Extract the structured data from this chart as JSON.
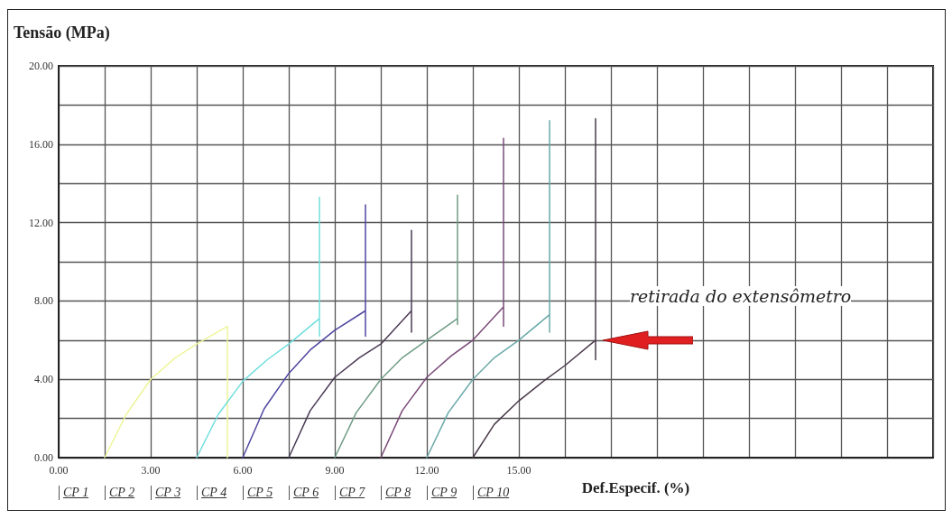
{
  "chart_data": {
    "type": "line",
    "xlabel": "Def.Especif. (%)",
    "ylabel": "Tensão (MPa)",
    "xlim": [
      0,
      28.5
    ],
    "ylim": [
      0,
      20
    ],
    "xticks": [
      {
        "value": 0,
        "label": "0.00"
      },
      {
        "value": 1.5,
        "label": null
      },
      {
        "value": 3,
        "label": "3.00"
      },
      {
        "value": 4.5,
        "label": null
      },
      {
        "value": 6,
        "label": "6.00"
      },
      {
        "value": 7.5,
        "label": null
      },
      {
        "value": 9,
        "label": "9.00"
      },
      {
        "value": 10.5,
        "label": null
      },
      {
        "value": 12,
        "label": "12.00"
      },
      {
        "value": 13.5,
        "label": null
      },
      {
        "value": 15,
        "label": "15.00"
      },
      {
        "value": 16.5,
        "label": null
      },
      {
        "value": 18,
        "label": null
      },
      {
        "value": 19.5,
        "label": null
      },
      {
        "value": 21,
        "label": null
      },
      {
        "value": 22.5,
        "label": null
      },
      {
        "value": 24,
        "label": null
      },
      {
        "value": 25.5,
        "label": null
      },
      {
        "value": 27,
        "label": null
      },
      {
        "value": 28.5,
        "label": null
      }
    ],
    "yticks": [
      {
        "value": 0,
        "label": "0.00"
      },
      {
        "value": 2,
        "label": null
      },
      {
        "value": 4,
        "label": "4.00"
      },
      {
        "value": 6,
        "label": null
      },
      {
        "value": 8,
        "label": "8.00"
      },
      {
        "value": 10,
        "label": null
      },
      {
        "value": 12,
        "label": "12.00"
      },
      {
        "value": 14,
        "label": null
      },
      {
        "value": 16,
        "label": "16.00"
      },
      {
        "value": 18,
        "label": null
      },
      {
        "value": 20,
        "label": "20.00"
      }
    ],
    "grid": true,
    "marker": "none",
    "line_style": "solid",
    "series": [
      {
        "color": "#eef59a",
        "x": [
          1.5,
          2.2,
          3,
          3.8,
          4.5,
          5.5,
          5.5
        ],
        "values": [
          0,
          2.2,
          4,
          5.1,
          5.8,
          6.7,
          0
        ]
      },
      {
        "color": "#70dede",
        "x": [
          4.5,
          5.2,
          6,
          6.8,
          7.5,
          8.5,
          8.5,
          8.5
        ],
        "values": [
          0,
          2.2,
          3.9,
          5,
          5.8,
          7.1,
          6.2,
          13.3
        ]
      },
      {
        "color": "#4f46a0",
        "x": [
          6,
          6.7,
          7.5,
          8.2,
          9,
          10,
          10,
          10
        ],
        "values": [
          0,
          2.5,
          4.3,
          5.5,
          6.5,
          7.5,
          6.2,
          12.9
        ]
      },
      {
        "color": "#4a3a55",
        "x": [
          7.5,
          8.2,
          9,
          9.8,
          10.5,
          11.5,
          11.5,
          11.5
        ],
        "values": [
          0,
          2.4,
          4.1,
          5.1,
          5.8,
          7.5,
          6.4,
          11.6
        ]
      },
      {
        "color": "#6f9c86",
        "x": [
          9,
          9.7,
          10.5,
          11.2,
          12,
          13,
          13,
          13
        ],
        "values": [
          0,
          2.3,
          4,
          5.1,
          6,
          7.1,
          6.8,
          13.4
        ]
      },
      {
        "color": "#7a4a78",
        "x": [
          10.5,
          11.2,
          12,
          12.8,
          13.5,
          14.5,
          14.5,
          14.5
        ],
        "values": [
          0,
          2.4,
          4.1,
          5.2,
          6,
          7.7,
          6.7,
          16.3
        ]
      },
      {
        "color": "#6aa8a8",
        "x": [
          12,
          12.7,
          13.5,
          14.2,
          15,
          16,
          16,
          16
        ],
        "values": [
          0,
          2.3,
          4,
          5.1,
          6,
          7.3,
          6.4,
          17.2
        ]
      },
      {
        "color": "#4a3a4a",
        "x": [
          13.5,
          14.2,
          15,
          15.8,
          16.5,
          17.5,
          17.5,
          17.5
        ],
        "values": [
          0,
          1.7,
          2.9,
          3.9,
          4.7,
          6,
          5,
          17.3
        ]
      }
    ],
    "annotations": [
      "CP 1",
      "CP 2",
      "CP 3",
      "CP 4",
      "CP 5",
      "CP 6",
      "CP 7",
      "CP 8",
      "CP 9",
      "CP 10",
      {
        "text": "retirada do extensômetro",
        "x": 17.5,
        "y": 6
      }
    ]
  }
}
